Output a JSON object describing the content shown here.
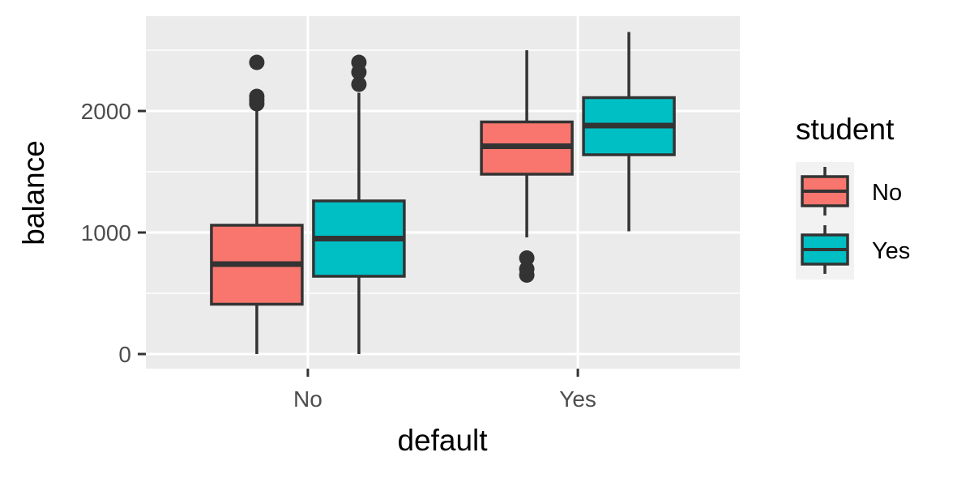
{
  "chart_data": {
    "type": "boxplot",
    "title": "",
    "xlabel": "default",
    "ylabel": "balance",
    "categories": [
      "No",
      "Yes"
    ],
    "ylim": [
      -120,
      2780
    ],
    "yticks": [
      0,
      1000,
      2000
    ],
    "ytick_labels": [
      "0",
      "1000",
      "2000"
    ],
    "grid": true,
    "legend": {
      "title": "student",
      "position": "right",
      "entries": [
        "No",
        "Yes"
      ]
    },
    "series": [
      {
        "name": "No",
        "color": "#F8766D",
        "boxes": [
          {
            "category": "No",
            "min": 0,
            "q1": 410,
            "median": 740,
            "q3": 1060,
            "max": 2040,
            "outliers": [
              2060,
              2090,
              2120,
              2400
            ]
          },
          {
            "category": "Yes",
            "min": 960,
            "q1": 1480,
            "median": 1710,
            "q3": 1910,
            "max": 2500,
            "outliers": [
              650,
              700,
              790
            ]
          }
        ]
      },
      {
        "name": "Yes",
        "color": "#00BFC4",
        "boxes": [
          {
            "category": "No",
            "min": 0,
            "q1": 640,
            "median": 950,
            "q3": 1260,
            "max": 2150,
            "outliers": [
              2220,
              2320,
              2400
            ]
          },
          {
            "category": "Yes",
            "min": 1010,
            "q1": 1640,
            "median": 1880,
            "q3": 2110,
            "max": 2650,
            "outliers": []
          }
        ]
      }
    ]
  }
}
